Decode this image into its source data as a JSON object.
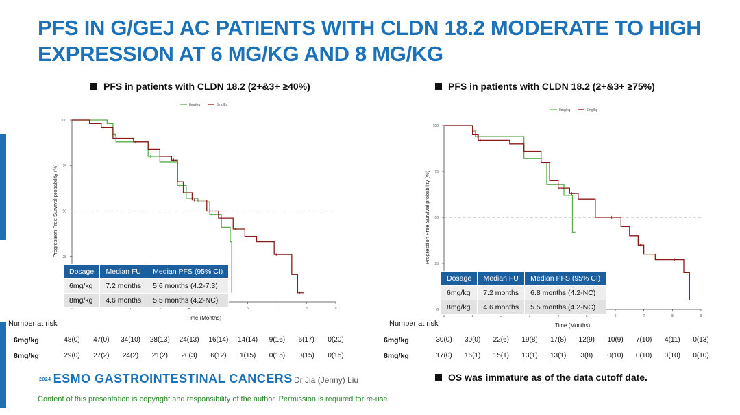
{
  "title": "PFS IN G/GEJ AC PATIENTS WITH CLDN 18.2 MODERATE TO HIGH EXPRESSION AT 6 MG/KG AND 8 MG/KG",
  "colors": {
    "brand": "#1c72b8",
    "series_8mg": "#5aae4a",
    "series_6mg": "#8b1a1a",
    "table_header": "#1c5f9e",
    "copyright": "#2a8a2a"
  },
  "panels": [
    {
      "heading": "PFS in patients with CLDN 18.2 (2+&3+ ≥40%)",
      "legend": [
        "8mg/kg",
        "6mg/kg"
      ],
      "table": {
        "headers": [
          "Dosage",
          "Median FU",
          "Median PFS  (95% CI)"
        ],
        "rows": [
          [
            "6mg/kg",
            "7.2 months",
            "5.6 months (4.2-7.3)"
          ],
          [
            "8mg/kg",
            "4.6 months",
            "5.5 months (4.2-NC)"
          ]
        ]
      },
      "risk": {
        "title": "Number at risk",
        "rows": [
          {
            "label": "6mg/kg",
            "values": [
              "48(0)",
              "47(0)",
              "34(10)",
              "28(13)",
              "24(13)",
              "16(14)",
              "14(14)",
              "9(16)",
              "6(17)",
              "0(20)"
            ]
          },
          {
            "label": "8mg/kg",
            "values": [
              "29(0)",
              "27(2)",
              "24(2)",
              "21(2)",
              "20(3)",
              "6(12)",
              "1(15)",
              "0(15)",
              "0(15)",
              "0(15)"
            ]
          }
        ]
      }
    },
    {
      "heading": "PFS in patients with CLDN 18.2 (2+&3+ ≥75%)",
      "legend": [
        "8mg/kg",
        "6mg/kg"
      ],
      "table": {
        "headers": [
          "Dosage",
          "Median FU",
          "Median PFS  (95% CI)"
        ],
        "rows": [
          [
            "6mg/kg",
            "7.2 months",
            "6.8 months (4.2-NC)"
          ],
          [
            "8mg/kg",
            "4.6 months",
            "5.5 months (4.2-NC)"
          ]
        ]
      },
      "risk": {
        "title": "Number at risk",
        "rows": [
          {
            "label": "6mg/kg",
            "values": [
              "30(0)",
              "30(0)",
              "22(6)",
              "19(8)",
              "17(8)",
              "12(9)",
              "10(9)",
              "7(10)",
              "4(11)",
              "0(13)"
            ]
          },
          {
            "label": "8mg/kg",
            "values": [
              "17(0)",
              "16(1)",
              "15(1)",
              "13(1)",
              "13(1)",
              "3(8)",
              "0(10)",
              "0(10)",
              "0(10)",
              "0(10)"
            ]
          }
        ]
      }
    }
  ],
  "chart_data": [
    {
      "type": "line",
      "step": true,
      "xlabel": "Time (Months)",
      "ylabel": "Progression Free Survival probability (%)",
      "xlim": [
        0,
        9
      ],
      "ylim": [
        0,
        100
      ],
      "yticks": [
        0,
        25,
        50,
        75,
        100
      ],
      "reference_line_y": 50,
      "series": [
        {
          "name": "8mg/kg",
          "x": [
            0,
            1.2,
            1.4,
            1.5,
            2.0,
            2.6,
            3.0,
            3.3,
            3.6,
            3.9,
            4.3,
            4.7,
            5.1,
            5.4,
            5.45
          ],
          "y": [
            100,
            98,
            92,
            88,
            88,
            80,
            77,
            77,
            64,
            57,
            55,
            48,
            41,
            33,
            5
          ]
        },
        {
          "name": "6mg/kg",
          "x": [
            0,
            0.6,
            1.0,
            1.4,
            1.8,
            2.1,
            2.6,
            3.0,
            3.4,
            3.6,
            3.8,
            4.1,
            4.6,
            5.0,
            5.5,
            5.9,
            6.3,
            6.9,
            7.1,
            7.5,
            7.7,
            7.9
          ],
          "y": [
            100,
            98,
            96,
            90,
            90,
            88,
            84,
            80,
            78,
            66,
            60,
            56,
            50,
            46,
            40,
            36,
            33,
            26,
            26,
            15,
            5,
            5
          ]
        }
      ]
    },
    {
      "type": "line",
      "step": true,
      "xlabel": "Time (Months)",
      "ylabel": "Progression Free Survival probability (%)",
      "xlim": [
        0,
        9
      ],
      "ylim": [
        0,
        100
      ],
      "yticks": [
        0,
        25,
        50,
        75,
        100
      ],
      "reference_line_y": 50,
      "series": [
        {
          "name": "8mg/kg",
          "x": [
            0,
            1.0,
            1.1,
            2.3,
            2.8,
            3.4,
            3.6,
            4.2,
            4.3,
            4.5,
            4.6
          ],
          "y": [
            100,
            97,
            94,
            94,
            82,
            80,
            68,
            62,
            62,
            42,
            42
          ]
        },
        {
          "name": "6mg/kg",
          "x": [
            0,
            1.0,
            1.2,
            2.3,
            2.8,
            3.4,
            3.7,
            4.0,
            4.4,
            4.7,
            5.3,
            5.8,
            6.2,
            6.5,
            6.8,
            7.0,
            7.4,
            8.0,
            8.4,
            8.6
          ],
          "y": [
            100,
            95,
            92,
            90,
            86,
            80,
            70,
            66,
            63,
            60,
            50,
            50,
            45,
            40,
            35,
            30,
            27,
            27,
            20,
            5
          ]
        }
      ]
    }
  ],
  "footer": {
    "logo_year": "2024",
    "logo_text": "ESMO GASTROINTESTINAL CANCERS",
    "author": "Dr Jia (Jenny) Liu",
    "copyright": "Content of this presentation is copyright and responsibility of the author. Permission is required for re-use.",
    "os_note": "OS was immature as of the data cutoff date."
  }
}
